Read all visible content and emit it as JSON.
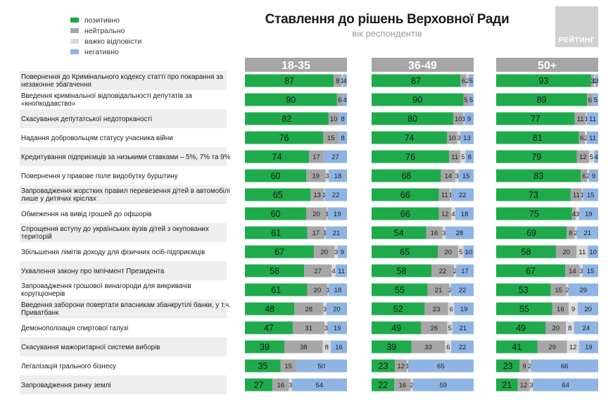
{
  "header": {
    "title": "Ставлення до рішень Верховної Ради",
    "subtitle": "вік респондентів",
    "logo_text": "РЕЙТИНГ"
  },
  "legend": [
    {
      "label": "позитивно",
      "color": "#1faa4b"
    },
    {
      "label": "нейтрально",
      "color": "#a6a6a6"
    },
    {
      "label": "важко відповісти",
      "color": "#d9d9d9"
    },
    {
      "label": "негативно",
      "color": "#8eb4e3"
    }
  ],
  "chart_data": {
    "type": "bar",
    "stacked": true,
    "orientation": "horizontal",
    "groups": [
      "18-35",
      "36-49",
      "50+"
    ],
    "segments": [
      "позитивно",
      "нейтрально",
      "важко відповісти",
      "негативно"
    ],
    "colors": [
      "#1faa4b",
      "#a6a6a6",
      "#d9d9d9",
      "#8eb4e3"
    ],
    "categories": [
      [
        "Повернення до Кримінального кодексу статті про покарання за",
        "незаконне збагачення"
      ],
      [
        "Введення кримінальної відповідальності депутатів за",
        "«кнопкодавство»"
      ],
      [
        "Скасування депутатської недоторканості"
      ],
      [
        "Надання добровольцям статусу учасника війни"
      ],
      [
        "Кредитування підприємців за низькими ставками – 5%, 7% та 9%"
      ],
      [
        "Повернення у правове поле видобутку бурштину"
      ],
      [
        "Запровадження жорстких правил перевезення дітей в автомобілі",
        "лише у дитячих кріслах"
      ],
      [
        "Обмеження на вивід грошей до офшорів"
      ],
      [
        "Спрощення вступу до українських вузів дітей з окупованих",
        "територій"
      ],
      [
        "Збільшення лімітів доходу для фізичних осіб-підприємців"
      ],
      [
        "Ухвалення закону про імпічмент Президента"
      ],
      [
        "Запровадження грошової винагороди для викривачів",
        "корупціонерів"
      ],
      [
        "Введення заборони повертати власникам збанкрутілі банки, у т.ч.",
        "Приватбанк"
      ],
      [
        "Демонополізація спиртової галузі"
      ],
      [
        "Скасування мажоритарної системи виборів"
      ],
      [
        "Легалізація грального бізнесу"
      ],
      [
        "Запровадження ринку землі"
      ]
    ],
    "values": [
      [
        [
          87,
          8,
          1,
          4
        ],
        [
          87,
          6,
          2,
          5
        ],
        [
          93,
          3,
          1,
          3
        ]
      ],
      [
        [
          90,
          6,
          0,
          4
        ],
        [
          90,
          5,
          0,
          5
        ],
        [
          89,
          6,
          0,
          5
        ]
      ],
      [
        [
          82,
          10,
          0,
          8
        ],
        [
          80,
          10,
          1,
          9
        ],
        [
          77,
          11,
          1,
          11
        ]
      ],
      [
        [
          76,
          15,
          0,
          8
        ],
        [
          74,
          10,
          3,
          13
        ],
        [
          81,
          6,
          2,
          11
        ]
      ],
      [
        [
          74,
          17,
          0,
          27
        ],
        [
          76,
          11,
          5,
          8
        ],
        [
          79,
          12,
          5,
          4
        ]
      ],
      [
        [
          60,
          19,
          3,
          18
        ],
        [
          68,
          14,
          3,
          15
        ],
        [
          83,
          6,
          2,
          9
        ]
      ],
      [
        [
          65,
          13,
          1,
          22
        ],
        [
          66,
          11,
          1,
          22
        ],
        [
          73,
          11,
          1,
          15
        ]
      ],
      [
        [
          60,
          20,
          1,
          19
        ],
        [
          66,
          12,
          4,
          18
        ],
        [
          75,
          4,
          3,
          19
        ]
      ],
      [
        [
          61,
          17,
          1,
          21
        ],
        [
          54,
          16,
          3,
          28
        ],
        [
          69,
          8,
          2,
          21
        ]
      ],
      [
        [
          67,
          20,
          3,
          9
        ],
        [
          65,
          20,
          5,
          10
        ],
        [
          58,
          20,
          11,
          10
        ]
      ],
      [
        [
          58,
          27,
          4,
          11
        ],
        [
          58,
          22,
          2,
          17
        ],
        [
          67,
          14,
          3,
          15
        ]
      ],
      [
        [
          61,
          20,
          1,
          18
        ],
        [
          55,
          21,
          2,
          22
        ],
        [
          53,
          15,
          2,
          29
        ]
      ],
      [
        [
          48,
          28,
          3,
          20
        ],
        [
          52,
          23,
          6,
          19
        ],
        [
          55,
          16,
          9,
          20
        ]
      ],
      [
        [
          47,
          31,
          3,
          19
        ],
        [
          49,
          26,
          5,
          21
        ],
        [
          49,
          20,
          8,
          24
        ]
      ],
      [
        [
          39,
          38,
          8,
          16
        ],
        [
          39,
          33,
          6,
          22
        ],
        [
          41,
          29,
          12,
          19
        ]
      ],
      [
        [
          35,
          15,
          0,
          50
        ],
        [
          23,
          12,
          1,
          65
        ],
        [
          23,
          9,
          2,
          66
        ]
      ],
      [
        [
          27,
          16,
          3,
          54
        ],
        [
          22,
          16,
          2,
          59
        ],
        [
          21,
          12,
          3,
          64
        ]
      ]
    ],
    "ylim": [
      0,
      100
    ]
  }
}
